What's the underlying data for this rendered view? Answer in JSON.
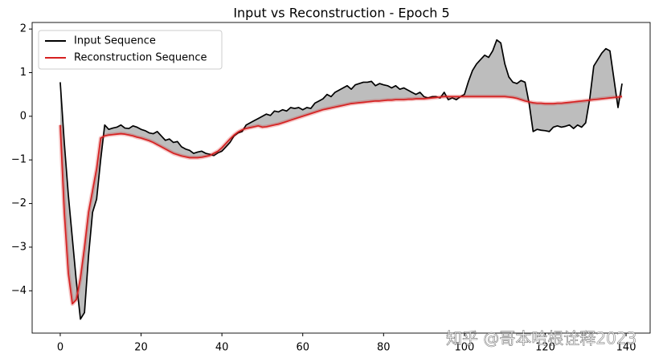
{
  "chart_data": {
    "type": "line",
    "title": "Input vs Reconstruction - Epoch 5",
    "x": [
      0,
      1,
      2,
      3,
      4,
      5,
      6,
      7,
      8,
      9,
      10,
      11,
      12,
      13,
      14,
      15,
      16,
      17,
      18,
      19,
      20,
      21,
      22,
      23,
      24,
      25,
      26,
      27,
      28,
      29,
      30,
      31,
      32,
      33,
      34,
      35,
      36,
      37,
      38,
      39,
      40,
      41,
      42,
      43,
      44,
      45,
      46,
      47,
      48,
      49,
      50,
      51,
      52,
      53,
      54,
      55,
      56,
      57,
      58,
      59,
      60,
      61,
      62,
      63,
      64,
      65,
      66,
      67,
      68,
      69,
      70,
      71,
      72,
      73,
      74,
      75,
      76,
      77,
      78,
      79,
      80,
      81,
      82,
      83,
      84,
      85,
      86,
      87,
      88,
      89,
      90,
      91,
      92,
      93,
      94,
      95,
      96,
      97,
      98,
      99,
      100,
      101,
      102,
      103,
      104,
      105,
      106,
      107,
      108,
      109,
      110,
      111,
      112,
      113,
      114,
      115,
      116,
      117,
      118,
      119,
      120,
      121,
      122,
      123,
      124,
      125,
      126,
      127,
      128,
      129,
      130,
      131,
      132,
      133,
      134,
      135,
      136,
      137,
      138,
      139
    ],
    "series": [
      {
        "name": "Input Sequence",
        "color": "#000000",
        "values": [
          0.78,
          -0.6,
          -1.8,
          -2.8,
          -3.8,
          -4.65,
          -4.5,
          -3.2,
          -2.2,
          -1.9,
          -1.0,
          -0.2,
          -0.3,
          -0.27,
          -0.25,
          -0.2,
          -0.27,
          -0.28,
          -0.22,
          -0.25,
          -0.3,
          -0.33,
          -0.38,
          -0.4,
          -0.35,
          -0.45,
          -0.55,
          -0.52,
          -0.6,
          -0.58,
          -0.7,
          -0.75,
          -0.78,
          -0.85,
          -0.82,
          -0.8,
          -0.85,
          -0.87,
          -0.9,
          -0.84,
          -0.8,
          -0.7,
          -0.6,
          -0.45,
          -0.38,
          -0.35,
          -0.2,
          -0.15,
          -0.1,
          -0.05,
          0.0,
          0.05,
          0.02,
          0.12,
          0.1,
          0.15,
          0.12,
          0.2,
          0.18,
          0.2,
          0.15,
          0.2,
          0.18,
          0.3,
          0.35,
          0.4,
          0.5,
          0.45,
          0.55,
          0.6,
          0.65,
          0.7,
          0.62,
          0.72,
          0.75,
          0.78,
          0.78,
          0.8,
          0.7,
          0.75,
          0.72,
          0.7,
          0.65,
          0.7,
          0.62,
          0.65,
          0.6,
          0.55,
          0.5,
          0.55,
          0.45,
          0.42,
          0.45,
          0.45,
          0.42,
          0.55,
          0.38,
          0.42,
          0.38,
          0.45,
          0.5,
          0.8,
          1.05,
          1.2,
          1.3,
          1.4,
          1.35,
          1.5,
          1.75,
          1.68,
          1.2,
          0.9,
          0.78,
          0.75,
          0.82,
          0.78,
          0.3,
          -0.35,
          -0.3,
          -0.32,
          -0.33,
          -0.35,
          -0.25,
          -0.22,
          -0.25,
          -0.23,
          -0.2,
          -0.28,
          -0.2,
          -0.25,
          -0.15,
          0.4,
          1.15,
          1.3,
          1.45,
          1.55,
          1.5,
          0.85,
          0.2,
          0.75
        ]
      },
      {
        "name": "Reconstruction Sequence",
        "color": "#d62020",
        "values": [
          -0.2,
          -2.2,
          -3.6,
          -4.3,
          -4.2,
          -3.7,
          -3.0,
          -2.2,
          -1.7,
          -1.2,
          -0.5,
          -0.45,
          -0.43,
          -0.42,
          -0.41,
          -0.4,
          -0.41,
          -0.43,
          -0.45,
          -0.48,
          -0.5,
          -0.53,
          -0.56,
          -0.6,
          -0.65,
          -0.7,
          -0.75,
          -0.8,
          -0.85,
          -0.88,
          -0.91,
          -0.93,
          -0.95,
          -0.95,
          -0.95,
          -0.94,
          -0.92,
          -0.9,
          -0.85,
          -0.8,
          -0.72,
          -0.62,
          -0.52,
          -0.43,
          -0.36,
          -0.31,
          -0.28,
          -0.26,
          -0.24,
          -0.22,
          -0.25,
          -0.24,
          -0.22,
          -0.2,
          -0.18,
          -0.15,
          -0.12,
          -0.09,
          -0.06,
          -0.03,
          0.0,
          0.03,
          0.06,
          0.09,
          0.12,
          0.15,
          0.17,
          0.19,
          0.21,
          0.23,
          0.25,
          0.27,
          0.29,
          0.3,
          0.31,
          0.32,
          0.33,
          0.34,
          0.35,
          0.35,
          0.36,
          0.37,
          0.37,
          0.38,
          0.38,
          0.38,
          0.39,
          0.39,
          0.4,
          0.4,
          0.4,
          0.41,
          0.42,
          0.43,
          0.44,
          0.45,
          0.45,
          0.45,
          0.45,
          0.45,
          0.45,
          0.45,
          0.45,
          0.45,
          0.45,
          0.45,
          0.45,
          0.45,
          0.45,
          0.45,
          0.45,
          0.44,
          0.43,
          0.41,
          0.38,
          0.35,
          0.33,
          0.31,
          0.3,
          0.3,
          0.29,
          0.29,
          0.29,
          0.3,
          0.3,
          0.31,
          0.32,
          0.33,
          0.34,
          0.35,
          0.36,
          0.37,
          0.38,
          0.39,
          0.4,
          0.41,
          0.42,
          0.43,
          0.44,
          0.45
        ]
      }
    ],
    "fill_between": true,
    "fill_color": "#bdbdbd",
    "xlim": [
      -6.95,
      145.95
    ],
    "xticks": [
      0,
      20,
      40,
      60,
      80,
      100,
      120,
      140
    ],
    "ylim": [
      -4.97,
      2.15
    ],
    "yticks": [
      {
        "value": -4,
        "label": "−4"
      },
      {
        "value": -3,
        "label": "−3"
      },
      {
        "value": -2,
        "label": "−2"
      },
      {
        "value": -1,
        "label": "−1"
      },
      0,
      1,
      2
    ],
    "legend": "upper left",
    "grid": false,
    "watermark": "知乎 @哥本哈根诠释2023"
  }
}
